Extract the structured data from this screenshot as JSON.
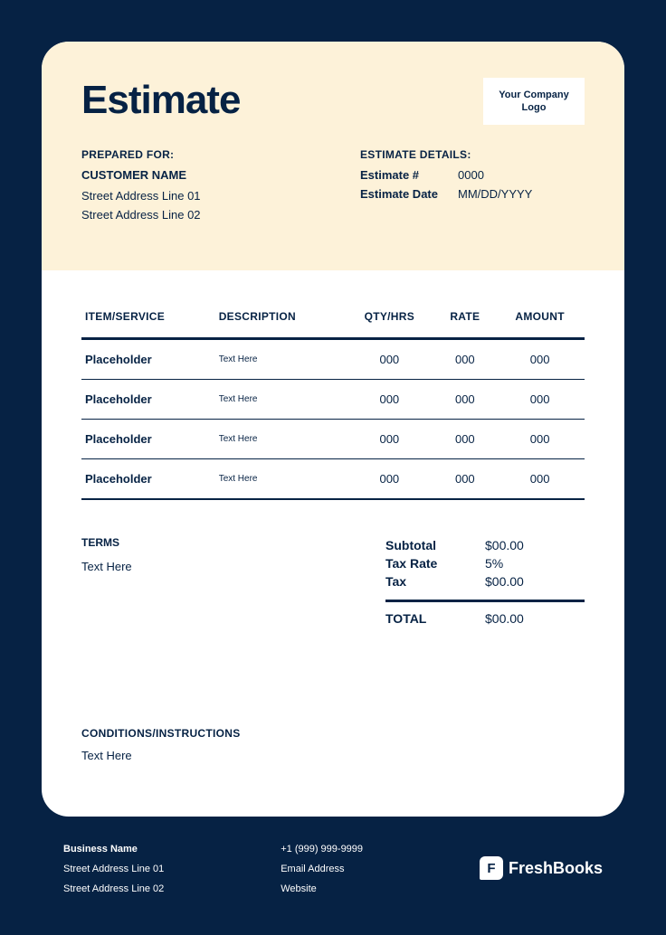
{
  "colors": {
    "page_bg": "#062244",
    "card_bg": "#ffffff",
    "header_bg": "#fdf2d9",
    "text_primary": "#062244",
    "footer_text": "#ffffff"
  },
  "title": "Estimate",
  "logo_text": "Your Company Logo",
  "prepared_for": {
    "label": "PREPARED FOR:",
    "customer_name": "CUSTOMER NAME",
    "addr1": "Street Address Line 01",
    "addr2": "Street Address Line 02"
  },
  "estimate_details": {
    "label": "ESTIMATE DETAILS:",
    "number_label": "Estimate #",
    "number_value": "0000",
    "date_label": "Estimate Date",
    "date_value": "MM/DD/YYYY"
  },
  "table": {
    "headers": [
      "ITEM/SERVICE",
      "DESCRIPTION",
      "QTY/HRS",
      "RATE",
      "AMOUNT"
    ],
    "rows": [
      {
        "item": "Placeholder",
        "desc": "Text Here",
        "qty": "000",
        "rate": "000",
        "amount": "000"
      },
      {
        "item": "Placeholder",
        "desc": "Text Here",
        "qty": "000",
        "rate": "000",
        "amount": "000"
      },
      {
        "item": "Placeholder",
        "desc": "Text Here",
        "qty": "000",
        "rate": "000",
        "amount": "000"
      },
      {
        "item": "Placeholder",
        "desc": "Text Here",
        "qty": "000",
        "rate": "000",
        "amount": "000"
      }
    ]
  },
  "terms": {
    "label": "TERMS",
    "text": "Text Here"
  },
  "totals": {
    "subtotal_label": "Subtotal",
    "subtotal_value": "$00.00",
    "taxrate_label": "Tax Rate",
    "taxrate_value": "5%",
    "tax_label": "Tax",
    "tax_value": "$00.00",
    "total_label": "TOTAL",
    "total_value": "$00.00"
  },
  "conditions": {
    "label": "CONDITIONS/INSTRUCTIONS",
    "text": "Text Here"
  },
  "footer": {
    "business_name": "Business Name",
    "addr1": "Street Address Line 01",
    "addr2": "Street Address Line 02",
    "phone": "+1 (999) 999-9999",
    "email": "Email Address",
    "website": "Website",
    "brand_letter": "F",
    "brand_name": "FreshBooks"
  }
}
